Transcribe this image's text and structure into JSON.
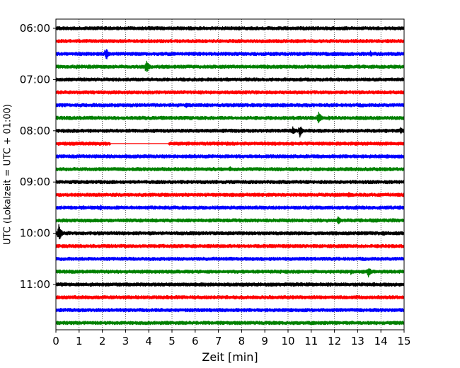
{
  "chart_data": {
    "type": "line",
    "title": "",
    "xlabel": "Zeit  [min]",
    "ylabel": "UTC (Lokalzeit = UTC + 01:00)",
    "xlim": [
      0,
      15
    ],
    "x_ticks": [
      "0",
      "1",
      "2",
      "3",
      "4",
      "5",
      "6",
      "7",
      "8",
      "9",
      "10",
      "11",
      "12",
      "13",
      "14",
      "15"
    ],
    "y_ticks": [
      "06:00",
      "07:00",
      "08:00",
      "09:00",
      "10:00",
      "11:00"
    ],
    "grid": "vertical dotted lines at each minute",
    "trace_colors": [
      "#000000",
      "#ff0000",
      "#0000ff",
      "#008000"
    ],
    "trace_interval_min": 15,
    "traces": [
      {
        "start": "06:00",
        "color": "#000000",
        "events": []
      },
      {
        "start": "06:15",
        "color": "#ff0000",
        "events": [
          {
            "t": 0.85,
            "amp": 0.15
          },
          {
            "t": 13.9,
            "amp": 0.15
          }
        ]
      },
      {
        "start": "06:30",
        "color": "#0000ff",
        "events": [
          {
            "t": 2.15,
            "amp": 0.7
          },
          {
            "t": 13.55,
            "amp": 0.3
          }
        ]
      },
      {
        "start": "06:45",
        "color": "#008000",
        "events": [
          {
            "t": 0.9,
            "amp": 0.2
          },
          {
            "t": 3.9,
            "amp": 0.75
          },
          {
            "t": 9.1,
            "amp": 0.25
          }
        ]
      },
      {
        "start": "07:00",
        "color": "#000000",
        "events": []
      },
      {
        "start": "07:15",
        "color": "#ff0000",
        "events": []
      },
      {
        "start": "07:30",
        "color": "#0000ff",
        "events": [
          {
            "t": 5.6,
            "amp": 0.3
          }
        ]
      },
      {
        "start": "07:45",
        "color": "#008000",
        "events": [
          {
            "t": 11.3,
            "amp": 0.75
          },
          {
            "t": 11.75,
            "amp": 0.25
          }
        ]
      },
      {
        "start": "08:00",
        "color": "#000000",
        "events": [
          {
            "t": 10.2,
            "amp": 0.45
          },
          {
            "t": 10.5,
            "amp": 0.65
          },
          {
            "t": 14.85,
            "amp": 0.4
          }
        ]
      },
      {
        "start": "08:15",
        "color": "#ff0000",
        "events": [
          {
            "t": 2.35,
            "amp": 0.2
          },
          {
            "t": 11.5,
            "amp": 0.2
          }
        ],
        "gap": [
          2.35,
          4.85
        ]
      },
      {
        "start": "08:30",
        "color": "#0000ff",
        "events": []
      },
      {
        "start": "08:45",
        "color": "#008000",
        "events": [
          {
            "t": 7.5,
            "amp": 0.25
          }
        ]
      },
      {
        "start": "09:00",
        "color": "#000000",
        "events": [
          {
            "t": 2.9,
            "amp": 0.2
          },
          {
            "t": 9.6,
            "amp": 0.2
          }
        ]
      },
      {
        "start": "09:15",
        "color": "#ff0000",
        "events": [
          {
            "t": 12.6,
            "amp": 0.3
          },
          {
            "t": 13.1,
            "amp": 0.25
          }
        ]
      },
      {
        "start": "09:30",
        "color": "#0000ff",
        "events": [
          {
            "t": 1.9,
            "amp": 0.3
          }
        ]
      },
      {
        "start": "09:45",
        "color": "#008000",
        "events": [
          {
            "t": 12.15,
            "amp": 0.45
          },
          {
            "t": 9.0,
            "amp": 0.2
          }
        ]
      },
      {
        "start": "10:00",
        "color": "#000000",
        "events": [
          {
            "t": 0.12,
            "amp": 0.85
          },
          {
            "t": 14.1,
            "amp": 0.3
          }
        ]
      },
      {
        "start": "10:15",
        "color": "#ff0000",
        "events": []
      },
      {
        "start": "10:30",
        "color": "#0000ff",
        "events": []
      },
      {
        "start": "10:45",
        "color": "#008000",
        "events": [
          {
            "t": 3.9,
            "amp": 0.2
          },
          {
            "t": 12.7,
            "amp": 0.3
          },
          {
            "t": 13.45,
            "amp": 0.6
          }
        ]
      },
      {
        "start": "11:00",
        "color": "#000000",
        "events": [
          {
            "t": 1.5,
            "amp": 0.2
          },
          {
            "t": 6.0,
            "amp": 0.2
          }
        ]
      },
      {
        "start": "11:15",
        "color": "#ff0000",
        "events": [
          {
            "t": 6.2,
            "amp": 0.2
          },
          {
            "t": 9.7,
            "amp": 0.2
          }
        ]
      },
      {
        "start": "11:30",
        "color": "#0000ff",
        "events": [
          {
            "t": 4.1,
            "amp": 0.2
          },
          {
            "t": 6.6,
            "amp": 0.2
          },
          {
            "t": 10.8,
            "amp": 0.2
          }
        ]
      },
      {
        "start": "11:45",
        "color": "#008000",
        "events": [
          {
            "t": 1.55,
            "amp": 0.2
          },
          {
            "t": 11.1,
            "amp": 0.2
          }
        ]
      }
    ]
  }
}
